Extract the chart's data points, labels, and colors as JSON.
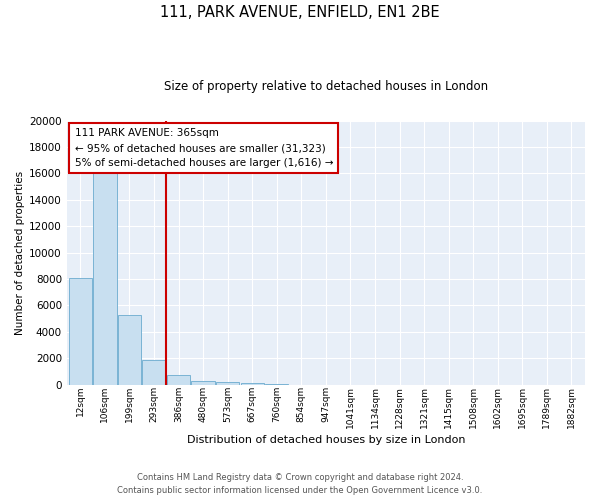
{
  "title": "111, PARK AVENUE, ENFIELD, EN1 2BE",
  "subtitle": "Size of property relative to detached houses in London",
  "xlabel": "Distribution of detached houses by size in London",
  "ylabel": "Number of detached properties",
  "bar_color": "#c8dff0",
  "bar_edge_color": "#7ab3d4",
  "background_color": "#ffffff",
  "plot_bg_color": "#e8eff8",
  "grid_color": "#ffffff",
  "ylim": [
    0,
    20000
  ],
  "yticks": [
    0,
    2000,
    4000,
    6000,
    8000,
    10000,
    12000,
    14000,
    16000,
    18000,
    20000
  ],
  "bin_labels": [
    "12sqm",
    "106sqm",
    "199sqm",
    "293sqm",
    "386sqm",
    "480sqm",
    "573sqm",
    "667sqm",
    "760sqm",
    "854sqm",
    "947sqm",
    "1041sqm",
    "1134sqm",
    "1228sqm",
    "1321sqm",
    "1415sqm",
    "1508sqm",
    "1602sqm",
    "1695sqm",
    "1789sqm",
    "1882sqm"
  ],
  "bar_heights": [
    8100,
    16500,
    5300,
    1850,
    750,
    300,
    200,
    100,
    50,
    0,
    0,
    0,
    0,
    0,
    0,
    0,
    0,
    0,
    0,
    0,
    0
  ],
  "property_line_color": "#cc0000",
  "property_line_x": 3.5,
  "annotation_title": "111 PARK AVENUE: 365sqm",
  "annotation_line1": "← 95% of detached houses are smaller (31,323)",
  "annotation_line2": "5% of semi-detached houses are larger (1,616) →",
  "annotation_box_facecolor": "#ffffff",
  "annotation_box_edgecolor": "#cc0000",
  "footer_line1": "Contains HM Land Registry data © Crown copyright and database right 2024.",
  "footer_line2": "Contains public sector information licensed under the Open Government Licence v3.0."
}
